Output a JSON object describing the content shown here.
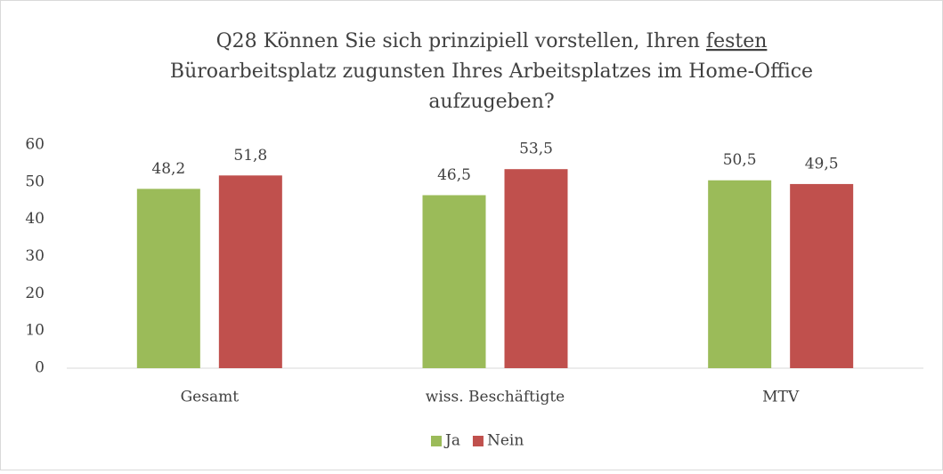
{
  "chart_data": {
    "type": "bar",
    "title": [
      "Q28 Können Sie sich prinzipiell vorstellen, Ihren ",
      "festen",
      "Büroarbeitsplatz zugunsten Ihres Arbeitsplatzes im Home-Office",
      "aufzugeben?"
    ],
    "categories": [
      "Gesamt",
      "wiss. Beschäftigte",
      "MTV"
    ],
    "series": [
      {
        "name": "Ja",
        "color": "#9bbb59",
        "values": [
          48.2,
          46.5,
          50.5
        ],
        "value_labels": [
          "48,2",
          "46,5",
          "50,5"
        ]
      },
      {
        "name": "Nein",
        "color": "#c0504d",
        "values": [
          51.8,
          53.5,
          49.5
        ],
        "value_labels": [
          "51,8",
          "53,5",
          "49,5"
        ]
      }
    ],
    "ylim": [
      0,
      60
    ],
    "yticks": [
      0,
      10,
      20,
      30,
      40,
      50,
      60
    ],
    "grid": false,
    "legend": "bottom"
  }
}
